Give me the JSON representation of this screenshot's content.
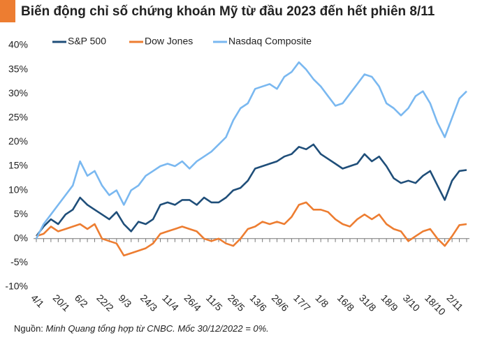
{
  "chart_data": {
    "type": "line",
    "title": "Biến động chỉ số chứng khoán Mỹ từ đầu 2023 đến hết phiên 8/11",
    "source_label": "Nguồn:",
    "source": "Minh Quang tổng hợp từ CNBC. Mốc 30/12/2022 = 0%.",
    "categories": [
      "4/1",
      null,
      null,
      "20/1",
      null,
      null,
      "6/2",
      null,
      null,
      "22/2",
      null,
      null,
      "9/3",
      null,
      null,
      "24/3",
      null,
      null,
      "11/4",
      null,
      null,
      "26/4",
      null,
      null,
      "11/5",
      null,
      null,
      "26/5",
      null,
      null,
      "13/6",
      null,
      null,
      "29/6",
      null,
      null,
      "17/7",
      null,
      null,
      "1/8",
      null,
      null,
      "16/8",
      null,
      null,
      "31/8",
      null,
      null,
      "18/9",
      null,
      null,
      "3/10",
      null,
      null,
      "18/10",
      null,
      null,
      "2/11",
      null,
      null
    ],
    "series": [
      {
        "name": "S&P 500",
        "color": "#1f4e79",
        "values": [
          0.5,
          2.5,
          4,
          3,
          5,
          6,
          8.5,
          7,
          6,
          5,
          4,
          5.5,
          3,
          1.5,
          3.5,
          3,
          4,
          7,
          7.5,
          7,
          8,
          8,
          7,
          8.5,
          7.5,
          7.5,
          8.5,
          10,
          10.5,
          12,
          14.5,
          15,
          15.5,
          16,
          17,
          17.5,
          19,
          18.5,
          19.5,
          17.5,
          16.5,
          15.5,
          14.5,
          15,
          15.5,
          17.5,
          16,
          17,
          15,
          12.5,
          11.5,
          12,
          11.5,
          13,
          14,
          11,
          8,
          12,
          14,
          14.2
        ]
      },
      {
        "name": "Dow Jones",
        "color": "#ed7d31",
        "values": [
          0.5,
          1,
          2.5,
          1.5,
          2,
          2.5,
          3,
          2,
          3,
          0,
          -0.5,
          -1,
          -3.5,
          -3,
          -2.5,
          -2,
          -1,
          1,
          1.5,
          2,
          2.5,
          2,
          1.5,
          0,
          -0.5,
          0,
          -1,
          -1.5,
          0,
          2,
          2.5,
          3.5,
          3,
          3.5,
          3,
          4.5,
          7,
          7.5,
          6,
          6,
          5.5,
          4,
          3,
          2.5,
          4,
          5,
          4,
          5,
          3,
          2,
          1.5,
          -0.5,
          0.5,
          1.5,
          2,
          0,
          -1.5,
          0.5,
          2.8,
          3
        ]
      },
      {
        "name": "Nasdaq Composite",
        "color": "#7ab8f0",
        "values": [
          0,
          3,
          5,
          7,
          9,
          11,
          16,
          13,
          14,
          11,
          9,
          10,
          7,
          10,
          11,
          13,
          14,
          15,
          15.5,
          15,
          16,
          14.5,
          16,
          17,
          18,
          19.5,
          21,
          24.5,
          27,
          28,
          31,
          31.5,
          32,
          31,
          33.5,
          34.5,
          36.5,
          35,
          33,
          31.5,
          29.5,
          27.5,
          28,
          30,
          32,
          34,
          33.5,
          31.5,
          28,
          27,
          25.5,
          27,
          29.5,
          30.5,
          28,
          24,
          21,
          25,
          29,
          30.5
        ]
      }
    ],
    "ylim": [
      -10,
      40
    ],
    "yticks": [
      {
        "value": -10,
        "label": "-10%"
      },
      {
        "value": -5,
        "label": "-5%"
      },
      {
        "value": 0,
        "label": "0%"
      },
      {
        "value": 5,
        "label": "5%"
      },
      {
        "value": 10,
        "label": "10%"
      },
      {
        "value": 15,
        "label": "15%"
      },
      {
        "value": 20,
        "label": "20%"
      },
      {
        "value": 25,
        "label": "25%"
      },
      {
        "value": 30,
        "label": "30%"
      },
      {
        "value": 35,
        "label": "35%"
      },
      {
        "value": 40,
        "label": "40%"
      }
    ],
    "grid": false
  }
}
